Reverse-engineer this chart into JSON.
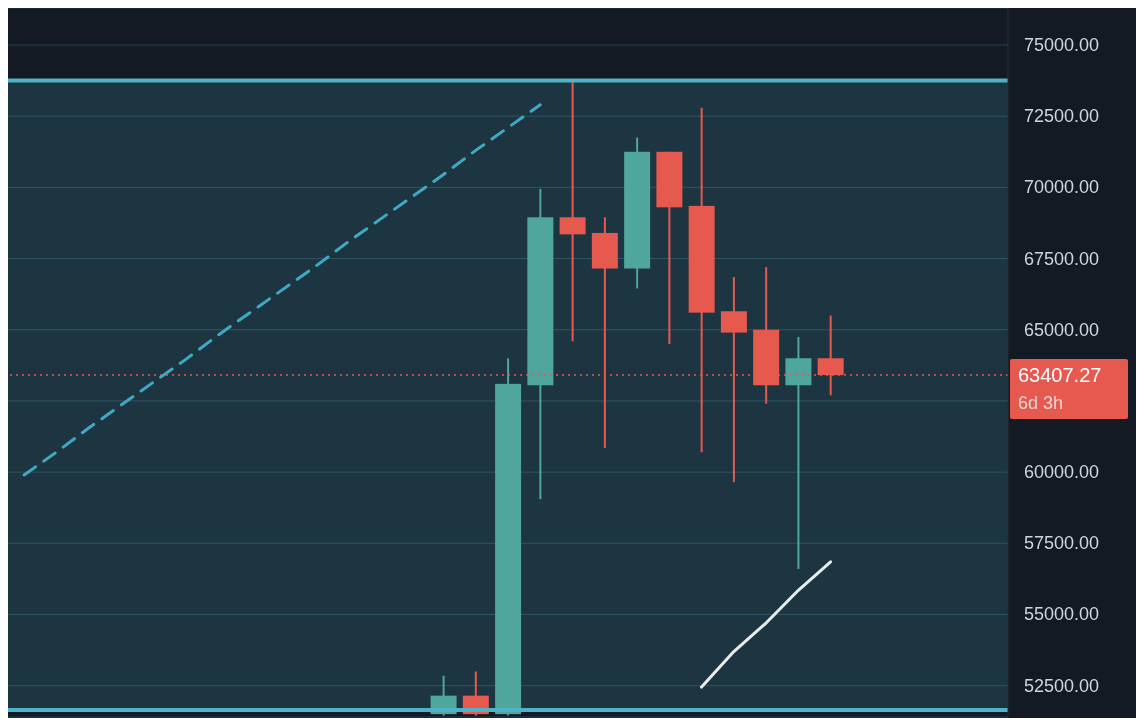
{
  "chart_data": {
    "type": "candlestick",
    "categories": [
      null,
      null,
      null,
      null,
      null,
      null,
      null,
      null,
      null,
      null,
      null,
      null,
      null,
      null,
      null,
      null,
      null,
      null,
      null,
      null,
      null,
      null,
      null,
      null,
      null,
      null,
      null,
      null,
      null,
      null,
      null
    ],
    "ohlc": [
      null,
      null,
      null,
      null,
      null,
      null,
      null,
      null,
      null,
      null,
      null,
      null,
      null,
      [
        51500,
        52850,
        51450,
        52150
      ],
      [
        52150,
        53000,
        51450,
        51500
      ],
      [
        51500,
        64000,
        51450,
        63100
      ],
      [
        63050,
        69950,
        59050,
        68950
      ],
      [
        68950,
        73750,
        64600,
        68350
      ],
      [
        68400,
        68950,
        60850,
        67150
      ],
      [
        67150,
        71750,
        66450,
        71250
      ],
      [
        71250,
        71250,
        64500,
        69300
      ],
      [
        69350,
        72800,
        60700,
        65600
      ],
      [
        65650,
        66850,
        59650,
        64900
      ],
      [
        65000,
        67200,
        62400,
        63050
      ],
      [
        63050,
        64750,
        56600,
        64000
      ],
      [
        64000,
        65500,
        62700,
        63407.27
      ],
      null,
      null,
      null,
      null,
      null
    ],
    "colors": [
      null,
      null,
      null,
      null,
      null,
      null,
      null,
      null,
      null,
      null,
      null,
      null,
      null,
      "#4fa69a",
      "#e5594f",
      "#4fa69a",
      "#4fa69a",
      "#e5594f",
      "#e5594f",
      "#4fa69a",
      "#e5594f",
      "#e5594f",
      "#e5594f",
      "#e5594f",
      "#4fa69a",
      "#e5594f",
      null,
      null,
      null,
      null,
      null
    ],
    "series": [
      {
        "type": "line",
        "color": "#3fa9c5",
        "line_style": "dashed",
        "values": [
          59900,
          60700,
          61550,
          62350,
          63150,
          63950,
          64800,
          65600,
          66400,
          67200,
          68050,
          68850,
          69650,
          70450,
          71300,
          72100,
          72900,
          null,
          null,
          null,
          null,
          null,
          null,
          null,
          null,
          null,
          null,
          null,
          null,
          null,
          null
        ]
      },
      {
        "type": "line",
        "color": "#e8eef0",
        "line_style": "solid",
        "values": [
          null,
          null,
          null,
          null,
          null,
          null,
          null,
          null,
          null,
          null,
          null,
          null,
          null,
          null,
          null,
          null,
          null,
          null,
          null,
          null,
          null,
          52450,
          53700,
          54700,
          55850,
          56850,
          null,
          null,
          null,
          null,
          null
        ]
      }
    ],
    "marker": "none",
    "ylim": [
      51400,
      76300
    ],
    "yticks": [
      {
        "value": 52500,
        "label": "52500.00"
      },
      {
        "value": 55000,
        "label": "55000.00"
      },
      {
        "value": 57500,
        "label": "57500.00"
      },
      {
        "value": 60000,
        "label": "60000.00"
      },
      {
        "value": 62500,
        "label": null
      },
      {
        "value": 65000,
        "label": "65000.00"
      },
      {
        "value": 67500,
        "label": "67500.00"
      },
      {
        "value": 70000,
        "label": "70000.00"
      },
      {
        "value": 72500,
        "label": "72500.00"
      },
      {
        "value": 75000,
        "label": "75000.00"
      }
    ],
    "tick_labels": "y",
    "grid": "y",
    "legend": false,
    "bands": [
      {
        "axis": "y",
        "from": 51650,
        "to": 73750,
        "color": "#4fb3c8"
      }
    ],
    "ref_lines": [
      {
        "axis": "y",
        "value": 63407.27,
        "label": "63407.27",
        "color": "#e5594f",
        "line_style": "dotted"
      },
      {
        "axis": "y",
        "value": 51650,
        "color": "#4fb3c8",
        "line_style": "solid"
      },
      {
        "axis": "y",
        "value": 73750,
        "color": "#4fb3c8",
        "line_style": "solid"
      }
    ],
    "annotations": [
      "6d 3h"
    ]
  }
}
